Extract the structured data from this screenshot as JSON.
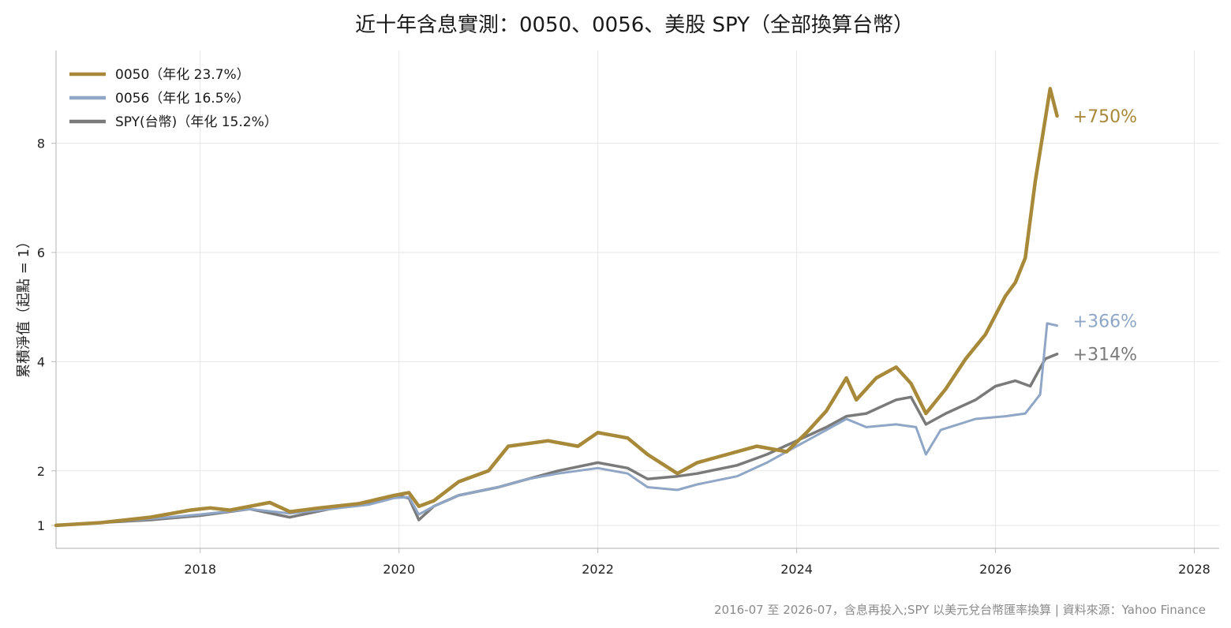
{
  "chart_data": {
    "type": "line",
    "title": "近十年含息實測：0050、0056、美股 SPY（全部換算台幣）",
    "ylabel": "累積淨值（起點 = 1）",
    "xlabel": "",
    "xlim": [
      2016.55,
      2028.25
    ],
    "ylim": [
      0.58,
      9.7
    ],
    "x_ticks": [
      2018,
      2020,
      2022,
      2024,
      2026,
      2028
    ],
    "x_tick_labels": [
      "2018",
      "2020",
      "2022",
      "2024",
      "2026",
      "2028"
    ],
    "y_ticks": [
      1,
      2,
      4,
      6,
      8
    ],
    "y_tick_labels": [
      "1",
      "2",
      "4",
      "6",
      "8"
    ],
    "grid": true,
    "legend_position": "top-left",
    "footer": "2016-07 至 2026-07，含息再投入;SPY 以美元兌台幣匯率換算 | 資料來源：Yahoo Finance",
    "series": [
      {
        "name": "0050（年化 23.7%）",
        "color": "#A8893A",
        "end_label": "+750%",
        "points": [
          [
            2016.55,
            1.0
          ],
          [
            2017.0,
            1.05
          ],
          [
            2017.5,
            1.15
          ],
          [
            2017.9,
            1.28
          ],
          [
            2018.1,
            1.32
          ],
          [
            2018.3,
            1.28
          ],
          [
            2018.7,
            1.42
          ],
          [
            2018.9,
            1.25
          ],
          [
            2019.2,
            1.32
          ],
          [
            2019.6,
            1.4
          ],
          [
            2019.95,
            1.55
          ],
          [
            2020.1,
            1.6
          ],
          [
            2020.2,
            1.35
          ],
          [
            2020.35,
            1.45
          ],
          [
            2020.6,
            1.8
          ],
          [
            2020.9,
            2.0
          ],
          [
            2021.1,
            2.45
          ],
          [
            2021.3,
            2.5
          ],
          [
            2021.5,
            2.55
          ],
          [
            2021.8,
            2.45
          ],
          [
            2022.0,
            2.7
          ],
          [
            2022.3,
            2.6
          ],
          [
            2022.5,
            2.3
          ],
          [
            2022.8,
            1.95
          ],
          [
            2023.0,
            2.15
          ],
          [
            2023.3,
            2.3
          ],
          [
            2023.6,
            2.45
          ],
          [
            2023.9,
            2.35
          ],
          [
            2024.1,
            2.7
          ],
          [
            2024.3,
            3.1
          ],
          [
            2024.5,
            3.7
          ],
          [
            2024.6,
            3.3
          ],
          [
            2024.8,
            3.7
          ],
          [
            2025.0,
            3.9
          ],
          [
            2025.15,
            3.6
          ],
          [
            2025.3,
            3.05
          ],
          [
            2025.5,
            3.5
          ],
          [
            2025.7,
            4.05
          ],
          [
            2025.9,
            4.5
          ],
          [
            2026.1,
            5.2
          ],
          [
            2026.2,
            5.45
          ],
          [
            2026.3,
            5.9
          ],
          [
            2026.4,
            7.3
          ],
          [
            2026.55,
            9.0
          ],
          [
            2026.62,
            8.5
          ]
        ]
      },
      {
        "name": "0056（年化 16.5%）",
        "color": "#8FA6C6",
        "end_label": "+366%",
        "points": [
          [
            2016.55,
            1.0
          ],
          [
            2017.0,
            1.05
          ],
          [
            2017.5,
            1.12
          ],
          [
            2018.0,
            1.2
          ],
          [
            2018.5,
            1.3
          ],
          [
            2018.9,
            1.22
          ],
          [
            2019.3,
            1.3
          ],
          [
            2019.7,
            1.38
          ],
          [
            2019.95,
            1.5
          ],
          [
            2020.1,
            1.52
          ],
          [
            2020.2,
            1.2
          ],
          [
            2020.35,
            1.35
          ],
          [
            2020.6,
            1.55
          ],
          [
            2021.0,
            1.7
          ],
          [
            2021.3,
            1.85
          ],
          [
            2021.6,
            1.95
          ],
          [
            2022.0,
            2.05
          ],
          [
            2022.3,
            1.95
          ],
          [
            2022.5,
            1.7
          ],
          [
            2022.8,
            1.65
          ],
          [
            2023.0,
            1.75
          ],
          [
            2023.4,
            1.9
          ],
          [
            2023.7,
            2.15
          ],
          [
            2024.0,
            2.45
          ],
          [
            2024.3,
            2.75
          ],
          [
            2024.5,
            2.95
          ],
          [
            2024.7,
            2.8
          ],
          [
            2025.0,
            2.85
          ],
          [
            2025.2,
            2.8
          ],
          [
            2025.3,
            2.3
          ],
          [
            2025.45,
            2.75
          ],
          [
            2025.8,
            2.95
          ],
          [
            2026.1,
            3.0
          ],
          [
            2026.3,
            3.05
          ],
          [
            2026.45,
            3.4
          ],
          [
            2026.52,
            4.7
          ],
          [
            2026.62,
            4.66
          ]
        ]
      },
      {
        "name": "SPY(台幣)（年化 15.2%）",
        "color": "#7A7A7A",
        "end_label": "+314%",
        "points": [
          [
            2016.55,
            1.0
          ],
          [
            2017.0,
            1.05
          ],
          [
            2017.5,
            1.1
          ],
          [
            2018.0,
            1.18
          ],
          [
            2018.5,
            1.3
          ],
          [
            2018.9,
            1.15
          ],
          [
            2019.3,
            1.3
          ],
          [
            2019.7,
            1.4
          ],
          [
            2019.95,
            1.55
          ],
          [
            2020.1,
            1.5
          ],
          [
            2020.2,
            1.1
          ],
          [
            2020.35,
            1.35
          ],
          [
            2020.6,
            1.55
          ],
          [
            2021.0,
            1.7
          ],
          [
            2021.3,
            1.85
          ],
          [
            2021.6,
            2.0
          ],
          [
            2022.0,
            2.15
          ],
          [
            2022.3,
            2.05
          ],
          [
            2022.5,
            1.85
          ],
          [
            2022.8,
            1.9
          ],
          [
            2023.0,
            1.95
          ],
          [
            2023.4,
            2.1
          ],
          [
            2023.7,
            2.3
          ],
          [
            2024.0,
            2.55
          ],
          [
            2024.3,
            2.8
          ],
          [
            2024.5,
            3.0
          ],
          [
            2024.7,
            3.05
          ],
          [
            2025.0,
            3.3
          ],
          [
            2025.15,
            3.35
          ],
          [
            2025.3,
            2.85
          ],
          [
            2025.5,
            3.05
          ],
          [
            2025.8,
            3.3
          ],
          [
            2026.0,
            3.55
          ],
          [
            2026.2,
            3.65
          ],
          [
            2026.35,
            3.55
          ],
          [
            2026.5,
            4.05
          ],
          [
            2026.62,
            4.14
          ]
        ]
      }
    ]
  }
}
